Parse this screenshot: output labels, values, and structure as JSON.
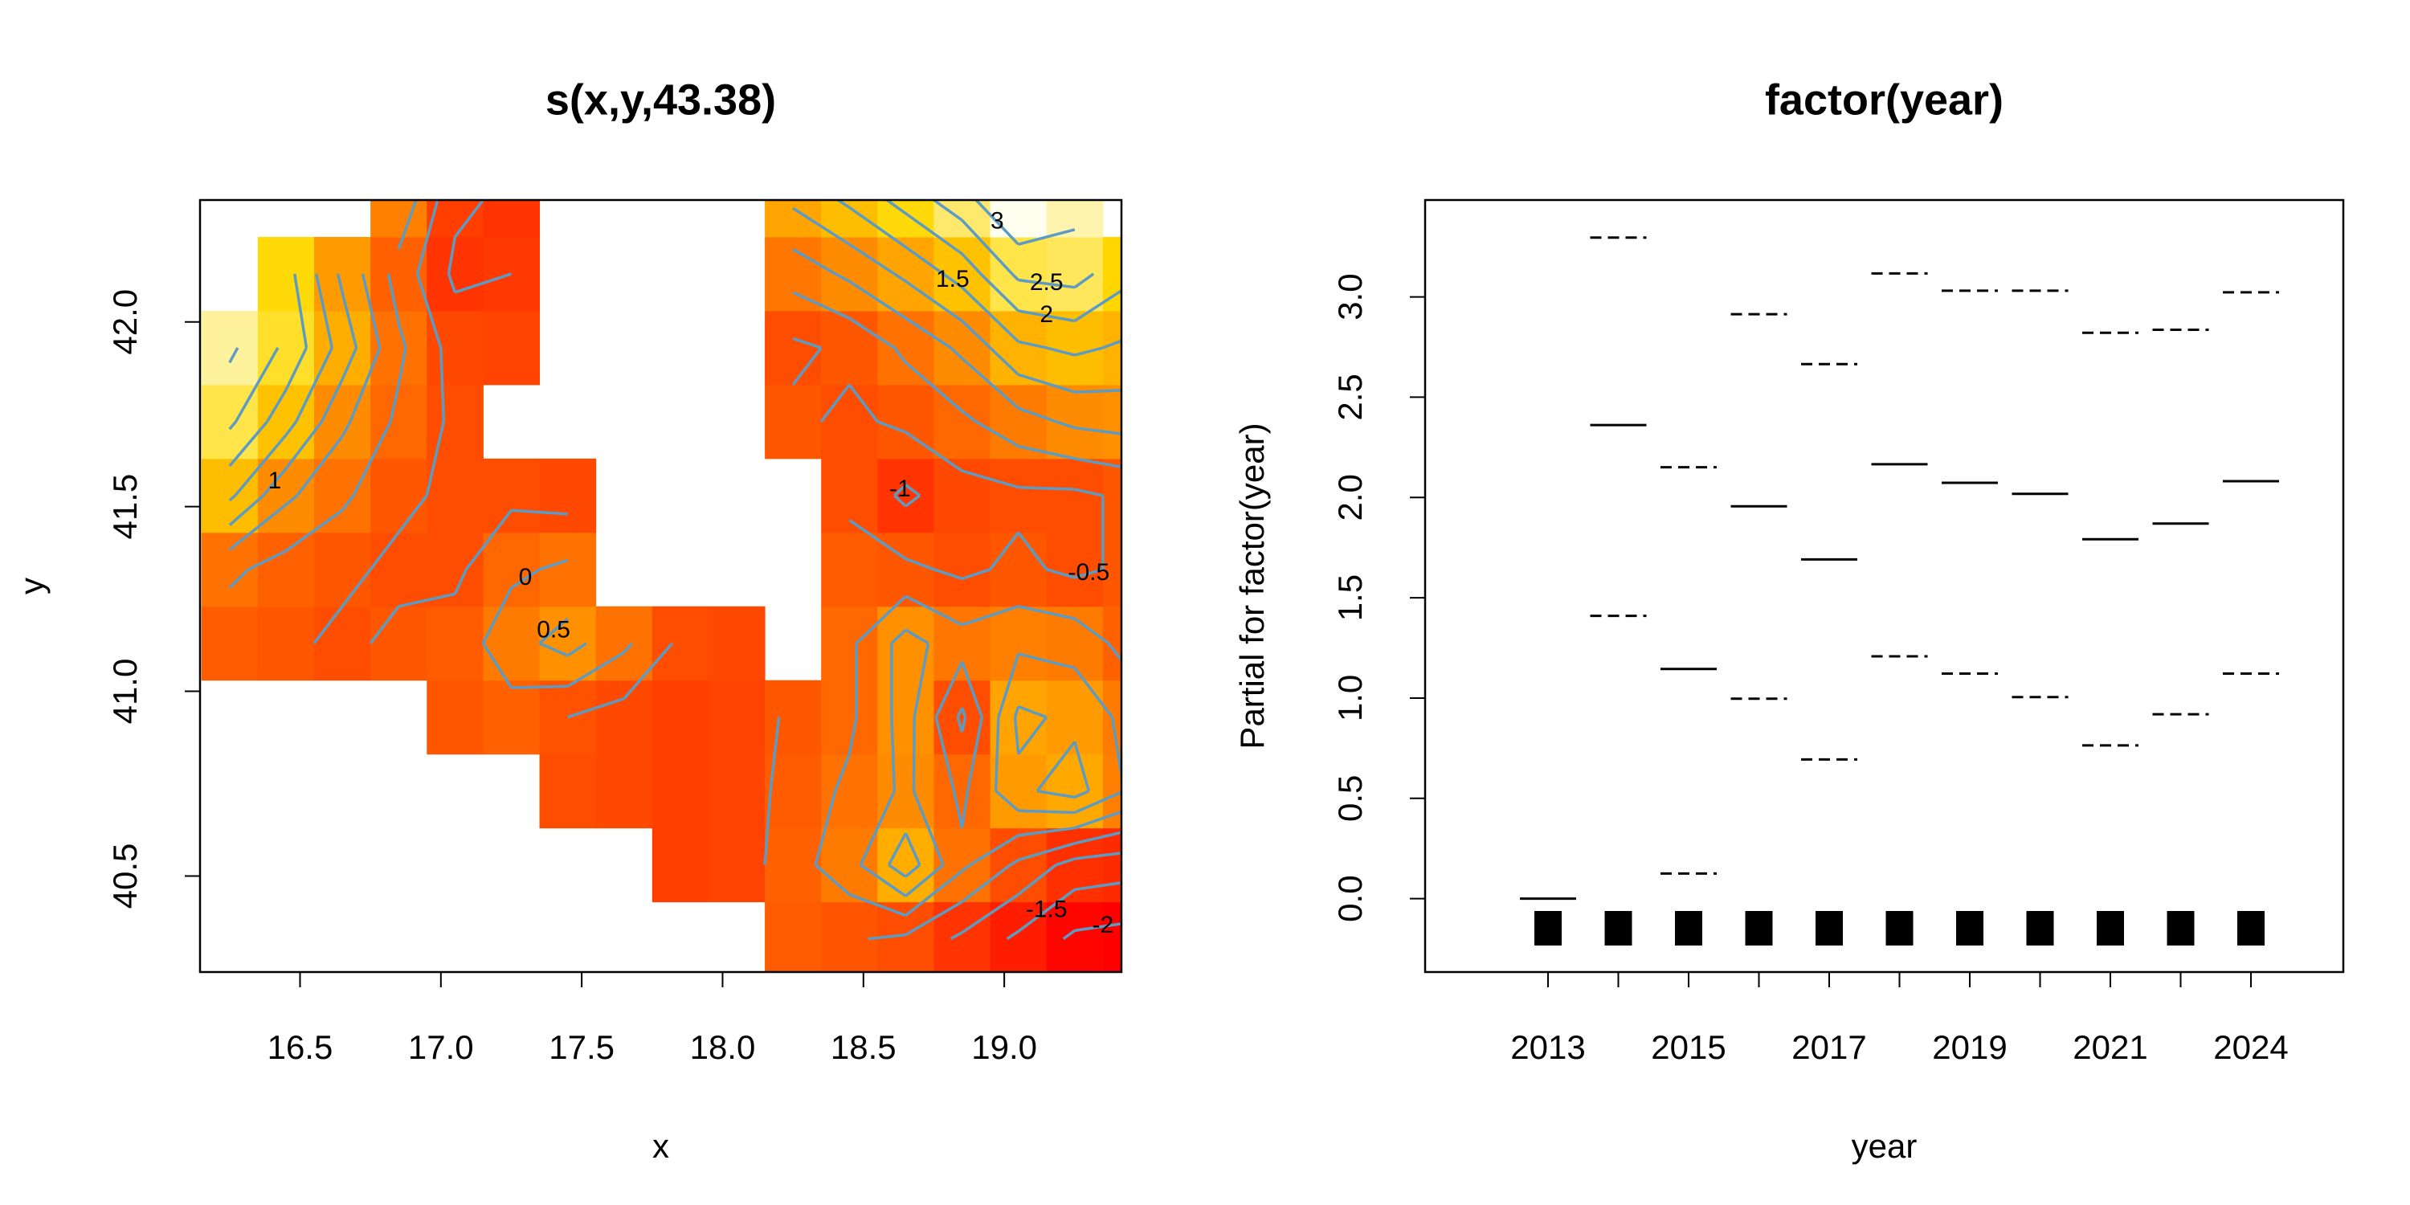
{
  "chart_data": [
    {
      "type": "heatmap",
      "title": "s(x,y,43.38)",
      "x_label": "x",
      "y_label": "y",
      "xlim": [
        16.145,
        19.416
      ],
      "ylim": [
        40.24,
        42.33
      ],
      "xticks": [
        16.5,
        {
          "value": 17,
          "label": "17.0"
        },
        17.5,
        {
          "value": 18,
          "label": "18.0"
        },
        18.5,
        {
          "value": 19,
          "label": "19.0"
        }
      ],
      "yticks": [
        40.5,
        {
          "value": 41,
          "label": "41.0"
        },
        41.5,
        {
          "value": 42,
          "label": "42.0"
        }
      ],
      "x": [
        16.25,
        16.45,
        16.65,
        16.85,
        17.05,
        17.25,
        17.45,
        17.65,
        17.85,
        18.05,
        18.25,
        18.45,
        18.65,
        18.85,
        19.05,
        19.25,
        19.45
      ],
      "y": [
        40.33,
        40.53,
        40.73,
        40.93,
        41.13,
        41.33,
        41.53,
        41.73,
        41.93,
        42.13,
        42.33
      ],
      "z": [
        [
          null,
          null,
          null,
          null,
          null,
          null,
          null,
          null,
          null,
          null,
          -0.3,
          -0.45,
          -0.6,
          -1.1,
          -1.6,
          -2.1,
          -2.2
        ],
        [
          null,
          null,
          null,
          null,
          null,
          null,
          null,
          null,
          -0.9,
          -0.8,
          -0.2,
          0.3,
          1.3,
          0.1,
          -0.6,
          -1.2,
          -1.3
        ],
        [
          null,
          null,
          null,
          null,
          null,
          null,
          -0.6,
          -0.7,
          -0.9,
          -0.8,
          -0.3,
          0.1,
          0.6,
          -0.1,
          0.9,
          1.2,
          0.4
        ],
        [
          null,
          null,
          null,
          null,
          -0.4,
          -0.2,
          -0.5,
          -0.7,
          -0.9,
          -0.8,
          -0.4,
          -0.1,
          0.7,
          -0.6,
          1.1,
          0.9,
          0.3
        ],
        [
          -0.3,
          -0.4,
          -0.6,
          -0.4,
          -0.3,
          0.3,
          0.7,
          0.1,
          -0.6,
          -0.7,
          null,
          -0.1,
          0.7,
          0.2,
          0.4,
          0.3,
          -0.2
        ],
        [
          0.1,
          -0.2,
          -0.4,
          -0.6,
          -0.6,
          -0.1,
          0.1,
          null,
          null,
          null,
          null,
          -0.3,
          -0.4,
          -0.6,
          -0.4,
          -0.6,
          -0.4
        ],
        [
          1.6,
          0.6,
          0.1,
          -0.4,
          -0.6,
          -0.6,
          -0.7,
          null,
          null,
          null,
          null,
          -0.6,
          -1.1,
          -0.7,
          -0.6,
          -0.6,
          -0.4
        ],
        [
          2.6,
          1.7,
          0.6,
          -0.1,
          -0.6,
          null,
          null,
          null,
          null,
          null,
          -0.4,
          -0.6,
          -0.4,
          -0.1,
          0.3,
          0.6,
          0.7
        ],
        [
          3.1,
          2.4,
          1.3,
          0.1,
          -0.7,
          -0.8,
          null,
          null,
          null,
          null,
          -0.6,
          -0.4,
          0.1,
          0.6,
          1.4,
          1.6,
          1.4
        ],
        [
          null,
          2.2,
          0.9,
          -0.2,
          -1.1,
          -1.0,
          null,
          null,
          null,
          null,
          0.2,
          0.6,
          1.1,
          1.7,
          2.6,
          2.7,
          2.1
        ],
        [
          null,
          null,
          null,
          0.4,
          -0.9,
          -1.1,
          null,
          null,
          null,
          null,
          1.1,
          1.6,
          2.2,
          2.8,
          3.6,
          3.2,
          null
        ]
      ],
      "colors": [
        "#ff0000",
        "#ff4500",
        "#ff9000",
        "#ffd800",
        "#fffff0"
      ],
      "contour_levels": [
        -2,
        -1.5,
        -1,
        -0.5,
        0,
        0.5,
        1,
        1.5,
        2,
        2.5,
        3
      ],
      "contour_color": "#5b9bc4"
    },
    {
      "type": "termplot",
      "title": "factor(year)",
      "x_label": "year",
      "y_label": "Partial for factor(year)",
      "categories": [
        "2013",
        null,
        "2015",
        null,
        "2017",
        null,
        "2019",
        null,
        "2021",
        null,
        "2024"
      ],
      "ylim": [
        -0.366,
        3.483
      ],
      "yticks": [
        {
          "value": 0,
          "label": "0.0"
        },
        0.5,
        {
          "value": 1,
          "label": "1.0"
        },
        1.5,
        {
          "value": 2,
          "label": "2.0"
        },
        2.5,
        {
          "value": 3,
          "label": "3.0"
        }
      ],
      "series": [
        {
          "linestyle": "solid",
          "color": "#000000",
          "values": [
            0.0,
            2.361,
            1.145,
            1.956,
            1.691,
            2.166,
            2.073,
            2.018,
            1.792,
            1.87,
            2.081
          ]
        },
        {
          "linestyle": "dashed",
          "color": "#000000",
          "values": [
            null,
            3.296,
            2.151,
            2.914,
            2.665,
            3.117,
            3.031,
            3.031,
            2.821,
            2.836,
            3.023
          ]
        },
        {
          "linestyle": "dashed",
          "color": "#000000",
          "values": [
            null,
            1.41,
            0.125,
            0.997,
            0.694,
            1.208,
            1.122,
            1.005,
            0.764,
            0.919,
            1.122
          ]
        }
      ],
      "rug": true
    }
  ]
}
